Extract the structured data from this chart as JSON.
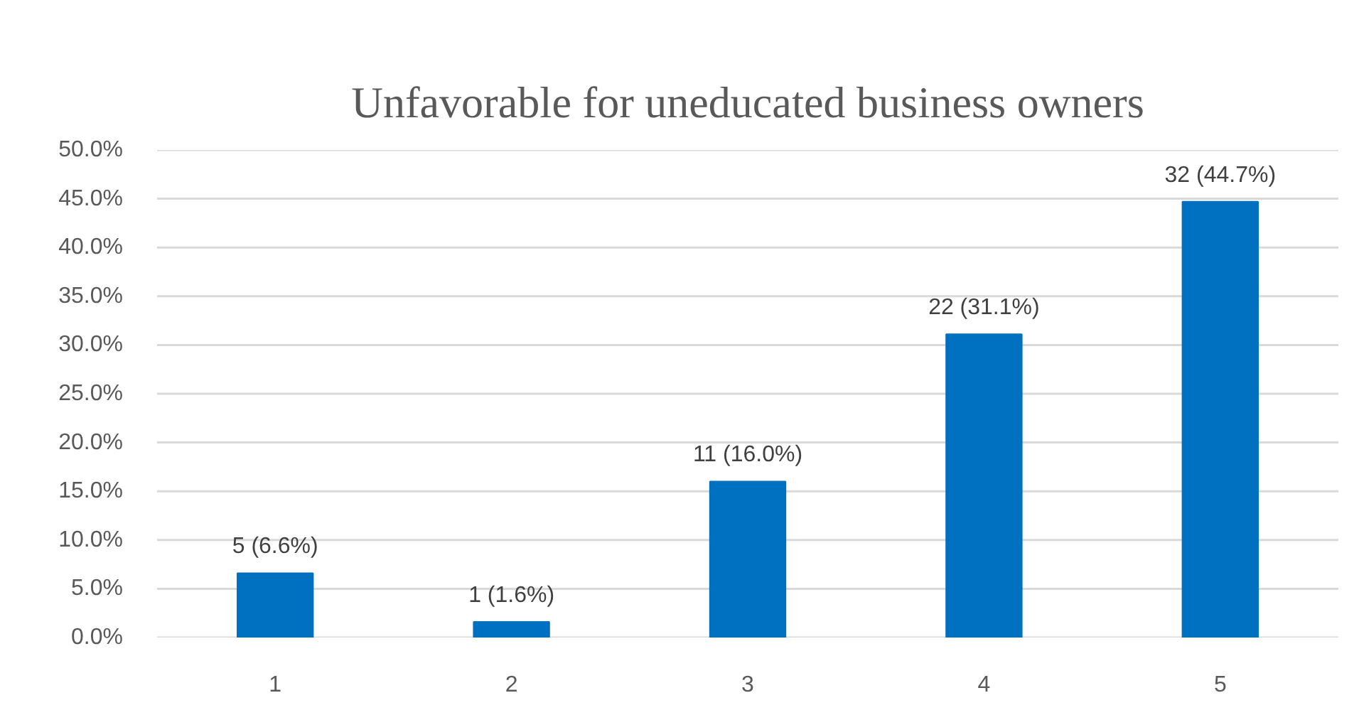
{
  "chart_data": {
    "type": "bar",
    "title": "Unfavorable for uneducated business owners",
    "categories": [
      "1",
      "2",
      "3",
      "4",
      "5"
    ],
    "values": [
      6.6,
      1.6,
      16.0,
      31.1,
      44.7
    ],
    "value_labels": [
      "5 (6.6%)",
      "1 (1.6%)",
      "11 (16.0%)",
      "22 (31.1%)",
      "32 (44.7%)"
    ],
    "color": "#0070c0",
    "ylim": [
      0,
      50
    ],
    "yticks": [
      {
        "value": 0,
        "label": "0.0%"
      },
      {
        "value": 5,
        "label": "5.0%"
      },
      {
        "value": 10,
        "label": "10.0%"
      },
      {
        "value": 15,
        "label": "15.0%"
      },
      {
        "value": 20,
        "label": "20.0%"
      },
      {
        "value": 25,
        "label": "25.0%"
      },
      {
        "value": 30,
        "label": "30.0%"
      },
      {
        "value": 35,
        "label": "35.0%"
      },
      {
        "value": 40,
        "label": "40.0%"
      },
      {
        "value": 45,
        "label": "45.0%"
      },
      {
        "value": 50,
        "label": "50.0%"
      }
    ],
    "grid": "y"
  }
}
